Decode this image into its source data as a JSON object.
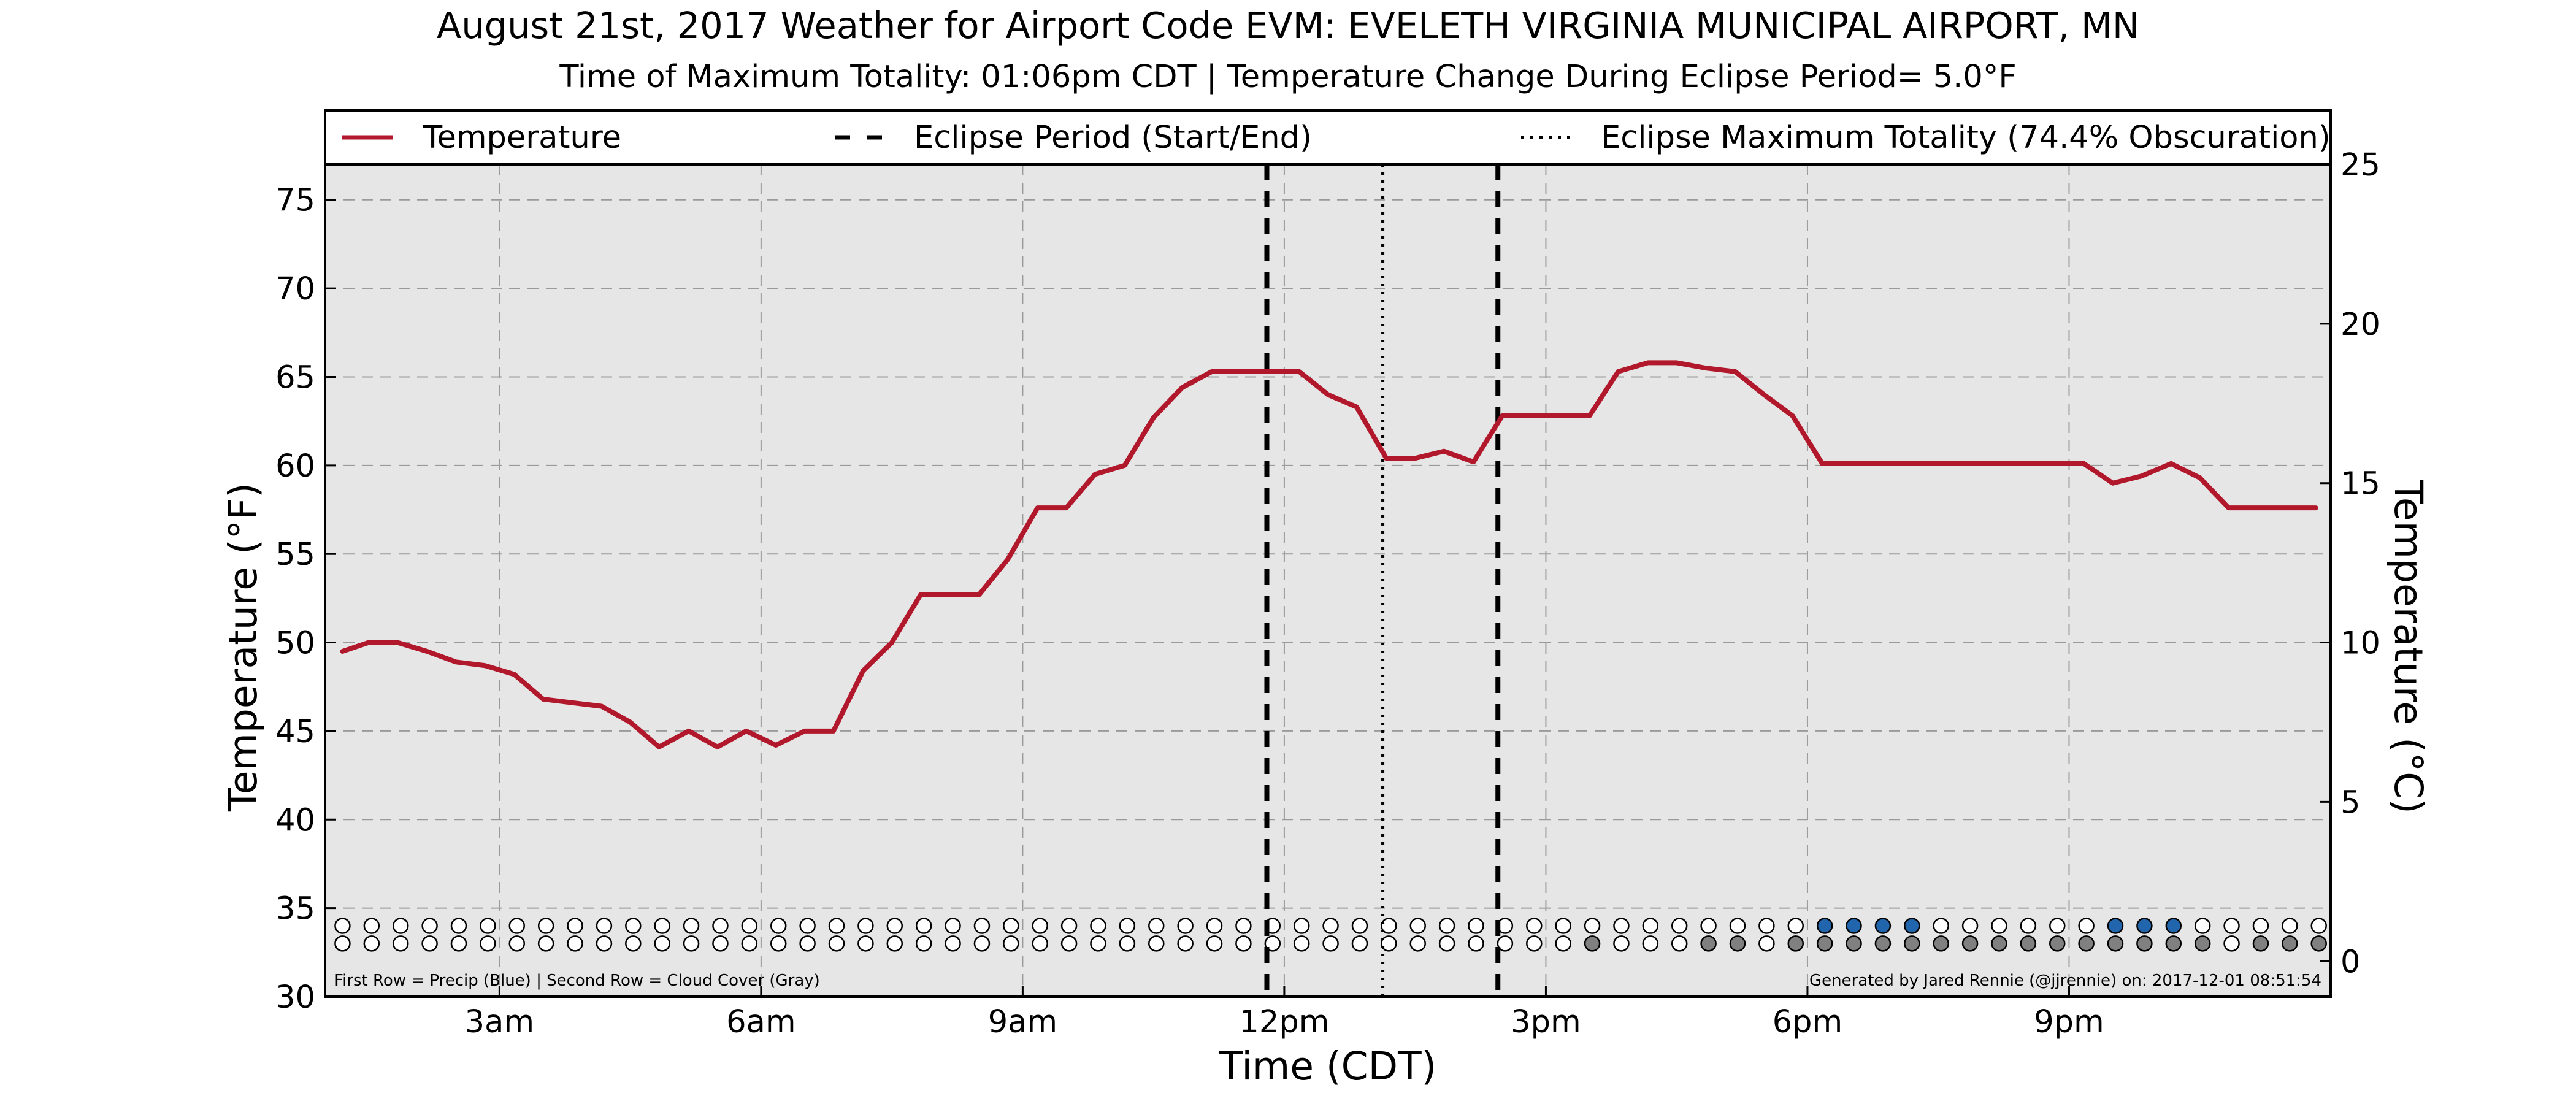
{
  "chart_data": {
    "type": "line",
    "title": "August 21st, 2017 Weather for Airport Code EVM: EVELETH VIRGINIA MUNICIPAL AIRPORT, MN",
    "subtitle": "Time of Maximum Totality: 01:06pm CDT | Temperature Change During Eclipse Period= 5.0°F",
    "xlabel": "Time (CDT)",
    "ylabel": "Temperature (°F)",
    "ylabel_right": "Temperature (°C)",
    "x_unit": "hours after midnight CDT",
    "xlim": [
      1.0,
      24.0
    ],
    "ylim": [
      30,
      77
    ],
    "ylim_right_celsius": [
      -1.1,
      25.0
    ],
    "x_ticks": [
      {
        "x": 3,
        "label": "3am"
      },
      {
        "x": 6,
        "label": "6am"
      },
      {
        "x": 9,
        "label": "9am"
      },
      {
        "x": 12,
        "label": "12pm"
      },
      {
        "x": 15,
        "label": "3pm"
      },
      {
        "x": 18,
        "label": "6pm"
      },
      {
        "x": 21,
        "label": "9pm"
      }
    ],
    "y_ticks": [
      30,
      35,
      40,
      45,
      50,
      55,
      60,
      65,
      70,
      75
    ],
    "y_ticks_right": [
      0,
      5,
      10,
      15,
      20,
      25
    ],
    "grid": true,
    "legend_position": "top, above plot",
    "series": [
      {
        "name": "Temperature",
        "color": "#b2182b",
        "points": [
          [
            1.2,
            49.5
          ],
          [
            1.5,
            50.0
          ],
          [
            1.83,
            50.0
          ],
          [
            2.17,
            49.5
          ],
          [
            2.5,
            48.9
          ],
          [
            2.83,
            48.7
          ],
          [
            3.17,
            48.2
          ],
          [
            3.5,
            46.8
          ],
          [
            3.83,
            46.6
          ],
          [
            4.17,
            46.4
          ],
          [
            4.5,
            45.5
          ],
          [
            4.83,
            44.1
          ],
          [
            5.17,
            45.0
          ],
          [
            5.5,
            44.1
          ],
          [
            5.83,
            45.0
          ],
          [
            6.17,
            44.2
          ],
          [
            6.5,
            45.0
          ],
          [
            6.83,
            45.0
          ],
          [
            7.17,
            48.4
          ],
          [
            7.5,
            50.0
          ],
          [
            7.83,
            52.7
          ],
          [
            8.17,
            52.7
          ],
          [
            8.5,
            52.7
          ],
          [
            8.83,
            54.7
          ],
          [
            9.17,
            57.6
          ],
          [
            9.5,
            57.6
          ],
          [
            9.83,
            59.5
          ],
          [
            10.17,
            60.0
          ],
          [
            10.5,
            62.7
          ],
          [
            10.83,
            64.4
          ],
          [
            11.17,
            65.3
          ],
          [
            11.5,
            65.3
          ],
          [
            11.83,
            65.3
          ],
          [
            12.17,
            65.3
          ],
          [
            12.5,
            64.0
          ],
          [
            12.83,
            63.3
          ],
          [
            13.17,
            60.4
          ],
          [
            13.5,
            60.4
          ],
          [
            13.83,
            60.8
          ],
          [
            14.17,
            60.2
          ],
          [
            14.5,
            62.8
          ],
          [
            14.83,
            62.8
          ],
          [
            15.17,
            62.8
          ],
          [
            15.5,
            62.8
          ],
          [
            15.83,
            65.3
          ],
          [
            16.17,
            65.8
          ],
          [
            16.5,
            65.8
          ],
          [
            16.83,
            65.5
          ],
          [
            17.17,
            65.3
          ],
          [
            17.5,
            64.0
          ],
          [
            17.83,
            62.8
          ],
          [
            18.17,
            60.1
          ],
          [
            18.5,
            60.1
          ],
          [
            18.83,
            60.1
          ],
          [
            19.17,
            60.1
          ],
          [
            19.5,
            60.1
          ],
          [
            19.83,
            60.1
          ],
          [
            20.17,
            60.1
          ],
          [
            20.5,
            60.1
          ],
          [
            20.83,
            60.1
          ],
          [
            21.17,
            60.1
          ],
          [
            21.5,
            59.0
          ],
          [
            21.83,
            59.4
          ],
          [
            22.17,
            60.1
          ],
          [
            22.5,
            59.3
          ],
          [
            22.83,
            57.6
          ],
          [
            23.17,
            57.6
          ],
          [
            23.5,
            57.6
          ],
          [
            23.83,
            57.6
          ]
        ]
      }
    ],
    "eclipse": {
      "start_x": 11.8,
      "end_x": 14.45,
      "max_totality_x": 13.13
    },
    "legend": [
      {
        "label": "Temperature",
        "style": "solid",
        "color": "#b2182b"
      },
      {
        "label": "Eclipse Period (Start/End)",
        "style": "dashed",
        "color": "#000000"
      },
      {
        "label": "Eclipse Maximum Totality (74.4% Obscuration)",
        "style": "dotted",
        "color": "#000000"
      }
    ],
    "indicator_rows": {
      "x_start": 1.2,
      "x_step": 0.3333,
      "count": 69,
      "precip_y": 34.0,
      "cloud_y": 33.0,
      "precip_color": "#2166ac",
      "cloud_color": "#808080",
      "precip_filled_indices": [
        51,
        52,
        53,
        54,
        61,
        62,
        63
      ],
      "cloud_filled_indices": [
        43,
        47,
        48,
        50,
        51,
        52,
        53,
        54,
        55,
        56,
        57,
        58,
        59,
        60,
        61,
        62,
        63,
        64,
        66,
        67,
        68
      ]
    },
    "footnote_left": "First Row = Precip (Blue) | Second Row = Cloud Cover (Gray)",
    "footnote_right": "Generated by Jared Rennie (@jjrennie) on: 2017-12-01 08:51:54"
  }
}
